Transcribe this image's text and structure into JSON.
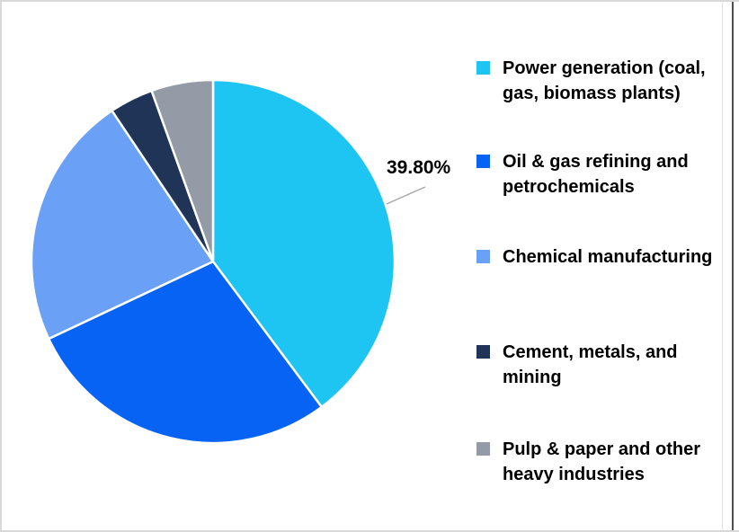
{
  "chart_data": {
    "type": "pie",
    "title": "",
    "categories": [
      "Power generation (coal, gas, biomass plants)",
      "Oil & gas refining and petrochemicals",
      "Chemical manufacturing",
      "Cement, metals, and mining",
      "Pulp & paper and other heavy industries"
    ],
    "values": [
      39.8,
      28.2,
      22.6,
      3.9,
      5.5
    ],
    "colors": [
      "#1EC4F2",
      "#0763F3",
      "#6BA0F7",
      "#203457",
      "#949BA6"
    ],
    "start_angle_deg": 0,
    "direction": "clockwise",
    "separator_color": "#FFFFFF",
    "leader_line_color": "#A6A6A6",
    "legend_position": "right",
    "data_label": {
      "text": "39.80%",
      "series_index": 0
    }
  },
  "legend": {
    "items": [
      {
        "label": "Power generation (coal, gas, biomass plants)"
      },
      {
        "label": "Oil & gas refining and petrochemicals"
      },
      {
        "label": "Chemical manufacturing"
      },
      {
        "label": "Cement, metals, and mining"
      },
      {
        "label": "Pulp & paper and other heavy industries"
      }
    ]
  }
}
